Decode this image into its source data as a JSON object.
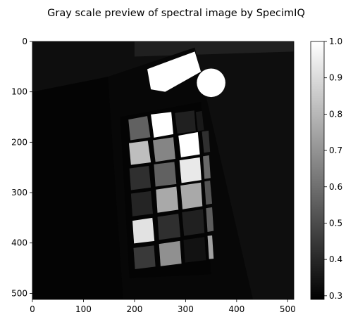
{
  "chart_data": {
    "type": "heatmap",
    "title": "Gray scale preview of spectral image by SpecimIQ",
    "xlabel": "",
    "ylabel": "",
    "xlim": [
      0,
      512
    ],
    "ylim": [
      512,
      0
    ],
    "xticks": [
      "0",
      "100",
      "200",
      "300",
      "400",
      "500"
    ],
    "yticks": [
      "0",
      "100",
      "200",
      "300",
      "400",
      "500"
    ],
    "colorbar": {
      "range": [
        0.29,
        1.0
      ],
      "ticks": [
        "0.3",
        "0.4",
        "0.5",
        "0.6",
        "0.7",
        "0.8",
        "0.9",
        "1.0"
      ],
      "colormap": "gray"
    },
    "background_value": 0.33,
    "scene": {
      "board_outline": [
        [
          148,
          70
        ],
        [
          318,
          12
        ],
        [
          432,
          512
        ],
        [
          178,
          512
        ]
      ],
      "card_outline": [
        [
          172,
          150
        ],
        [
          330,
          120
        ],
        [
          350,
          462
        ],
        [
          190,
          470
        ]
      ],
      "white_strip": [
        [
          225,
          55
        ],
        [
          318,
          20
        ],
        [
          330,
          60
        ],
        [
          260,
          100
        ],
        [
          232,
          95
        ]
      ],
      "white_disk": {
        "cx": 350,
        "cy": 82,
        "r": 28,
        "value": 1.0
      },
      "patches": [
        {
          "row": 0,
          "col": 0,
          "value": 0.56,
          "corners": [
            [
              188,
              155
            ],
            [
              225,
              148
            ],
            [
              231,
              190
            ],
            [
              192,
              196
            ]
          ]
        },
        {
          "row": 0,
          "col": 1,
          "value": 1.0,
          "corners": [
            [
              232,
              145
            ],
            [
              272,
              140
            ],
            [
              276,
              184
            ],
            [
              238,
              191
            ]
          ]
        },
        {
          "row": 0,
          "col": 2,
          "value": 0.38,
          "corners": [
            [
              279,
              142
            ],
            [
              317,
              137
            ],
            [
              320,
              178
            ],
            [
              284,
              183
            ]
          ]
        },
        {
          "row": 0,
          "col": 3,
          "value": 0.36,
          "corners": [
            [
              320,
              140
            ],
            [
              332,
              138
            ],
            [
              336,
              176
            ],
            [
              324,
              178
            ]
          ]
        },
        {
          "row": 1,
          "col": 0,
          "value": 0.82,
          "corners": [
            [
              189,
              202
            ],
            [
              226,
              197
            ],
            [
              232,
              240
            ],
            [
              193,
              245
            ]
          ]
        },
        {
          "row": 1,
          "col": 1,
          "value": 0.66,
          "corners": [
            [
              236,
              196
            ],
            [
              276,
              190
            ],
            [
              280,
              233
            ],
            [
              241,
              239
            ]
          ]
        },
        {
          "row": 1,
          "col": 2,
          "value": 1.0,
          "corners": [
            [
              286,
              187
            ],
            [
              324,
              180
            ],
            [
              328,
              224
            ],
            [
              291,
              230
            ]
          ]
        },
        {
          "row": 1,
          "col": 3,
          "value": 0.42,
          "corners": [
            [
              332,
              179
            ],
            [
              345,
              177
            ],
            [
              348,
              219
            ],
            [
              336,
              221
            ]
          ]
        },
        {
          "row": 2,
          "col": 0,
          "value": 0.42,
          "corners": [
            [
              190,
              252
            ],
            [
              228,
              247
            ],
            [
              232,
              290
            ],
            [
              193,
              295
            ]
          ]
        },
        {
          "row": 2,
          "col": 1,
          "value": 0.56,
          "corners": [
            [
              238,
              244
            ],
            [
              278,
              239
            ],
            [
              282,
              283
            ],
            [
              241,
              288
            ]
          ]
        },
        {
          "row": 2,
          "col": 2,
          "value": 0.94,
          "corners": [
            [
              288,
              236
            ],
            [
              328,
              230
            ],
            [
              331,
              275
            ],
            [
              292,
              281
            ]
          ]
        },
        {
          "row": 2,
          "col": 3,
          "value": 0.58,
          "corners": [
            [
              334,
              228
            ],
            [
              346,
              226
            ],
            [
              349,
              271
            ],
            [
              337,
              273
            ]
          ]
        },
        {
          "row": 3,
          "col": 0,
          "value": 0.39,
          "corners": [
            [
              193,
              302
            ],
            [
              232,
              297
            ],
            [
              236,
              342
            ],
            [
              196,
              347
            ]
          ]
        },
        {
          "row": 3,
          "col": 1,
          "value": 0.76,
          "corners": [
            [
              242,
              294
            ],
            [
              282,
              288
            ],
            [
              286,
              334
            ],
            [
              245,
              340
            ]
          ]
        },
        {
          "row": 3,
          "col": 2,
          "value": 0.76,
          "corners": [
            [
              290,
              286
            ],
            [
              330,
              280
            ],
            [
              333,
              327
            ],
            [
              294,
              333
            ]
          ]
        },
        {
          "row": 3,
          "col": 3,
          "value": 0.52,
          "corners": [
            [
              337,
              278
            ],
            [
              348,
              276
            ],
            [
              352,
              322
            ],
            [
              340,
              324
            ]
          ]
        },
        {
          "row": 4,
          "col": 0,
          "value": 0.92,
          "corners": [
            [
              196,
              356
            ],
            [
              235,
              350
            ],
            [
              239,
              396
            ],
            [
              199,
              401
            ]
          ]
        },
        {
          "row": 4,
          "col": 1,
          "value": 0.42,
          "corners": [
            [
              245,
              348
            ],
            [
              286,
              342
            ],
            [
              290,
              388
            ],
            [
              248,
              394
            ]
          ]
        },
        {
          "row": 4,
          "col": 2,
          "value": 0.38,
          "corners": [
            [
              293,
              339
            ],
            [
              334,
              333
            ],
            [
              337,
              380
            ],
            [
              297,
              386
            ]
          ]
        },
        {
          "row": 4,
          "col": 3,
          "value": 0.55,
          "corners": [
            [
              340,
              331
            ],
            [
              352,
              329
            ],
            [
              355,
              376
            ],
            [
              343,
              378
            ]
          ]
        },
        {
          "row": 5,
          "col": 0,
          "value": 0.45,
          "corners": [
            [
              198,
              410
            ],
            [
              238,
              405
            ],
            [
              241,
              447
            ],
            [
              201,
              452
            ]
          ]
        },
        {
          "row": 5,
          "col": 1,
          "value": 0.69,
          "corners": [
            [
              248,
              402
            ],
            [
              289,
              396
            ],
            [
              292,
              441
            ],
            [
              251,
              446
            ]
          ]
        },
        {
          "row": 5,
          "col": 2,
          "value": 0.34,
          "corners": [
            [
              296,
              394
            ],
            [
              337,
              388
            ],
            [
              340,
              434
            ],
            [
              299,
              439
            ]
          ]
        },
        {
          "row": 5,
          "col": 3,
          "value": 0.74,
          "corners": [
            [
              343,
              386
            ],
            [
              352,
              385
            ],
            [
              355,
              431
            ],
            [
              346,
              432
            ]
          ]
        }
      ]
    }
  }
}
